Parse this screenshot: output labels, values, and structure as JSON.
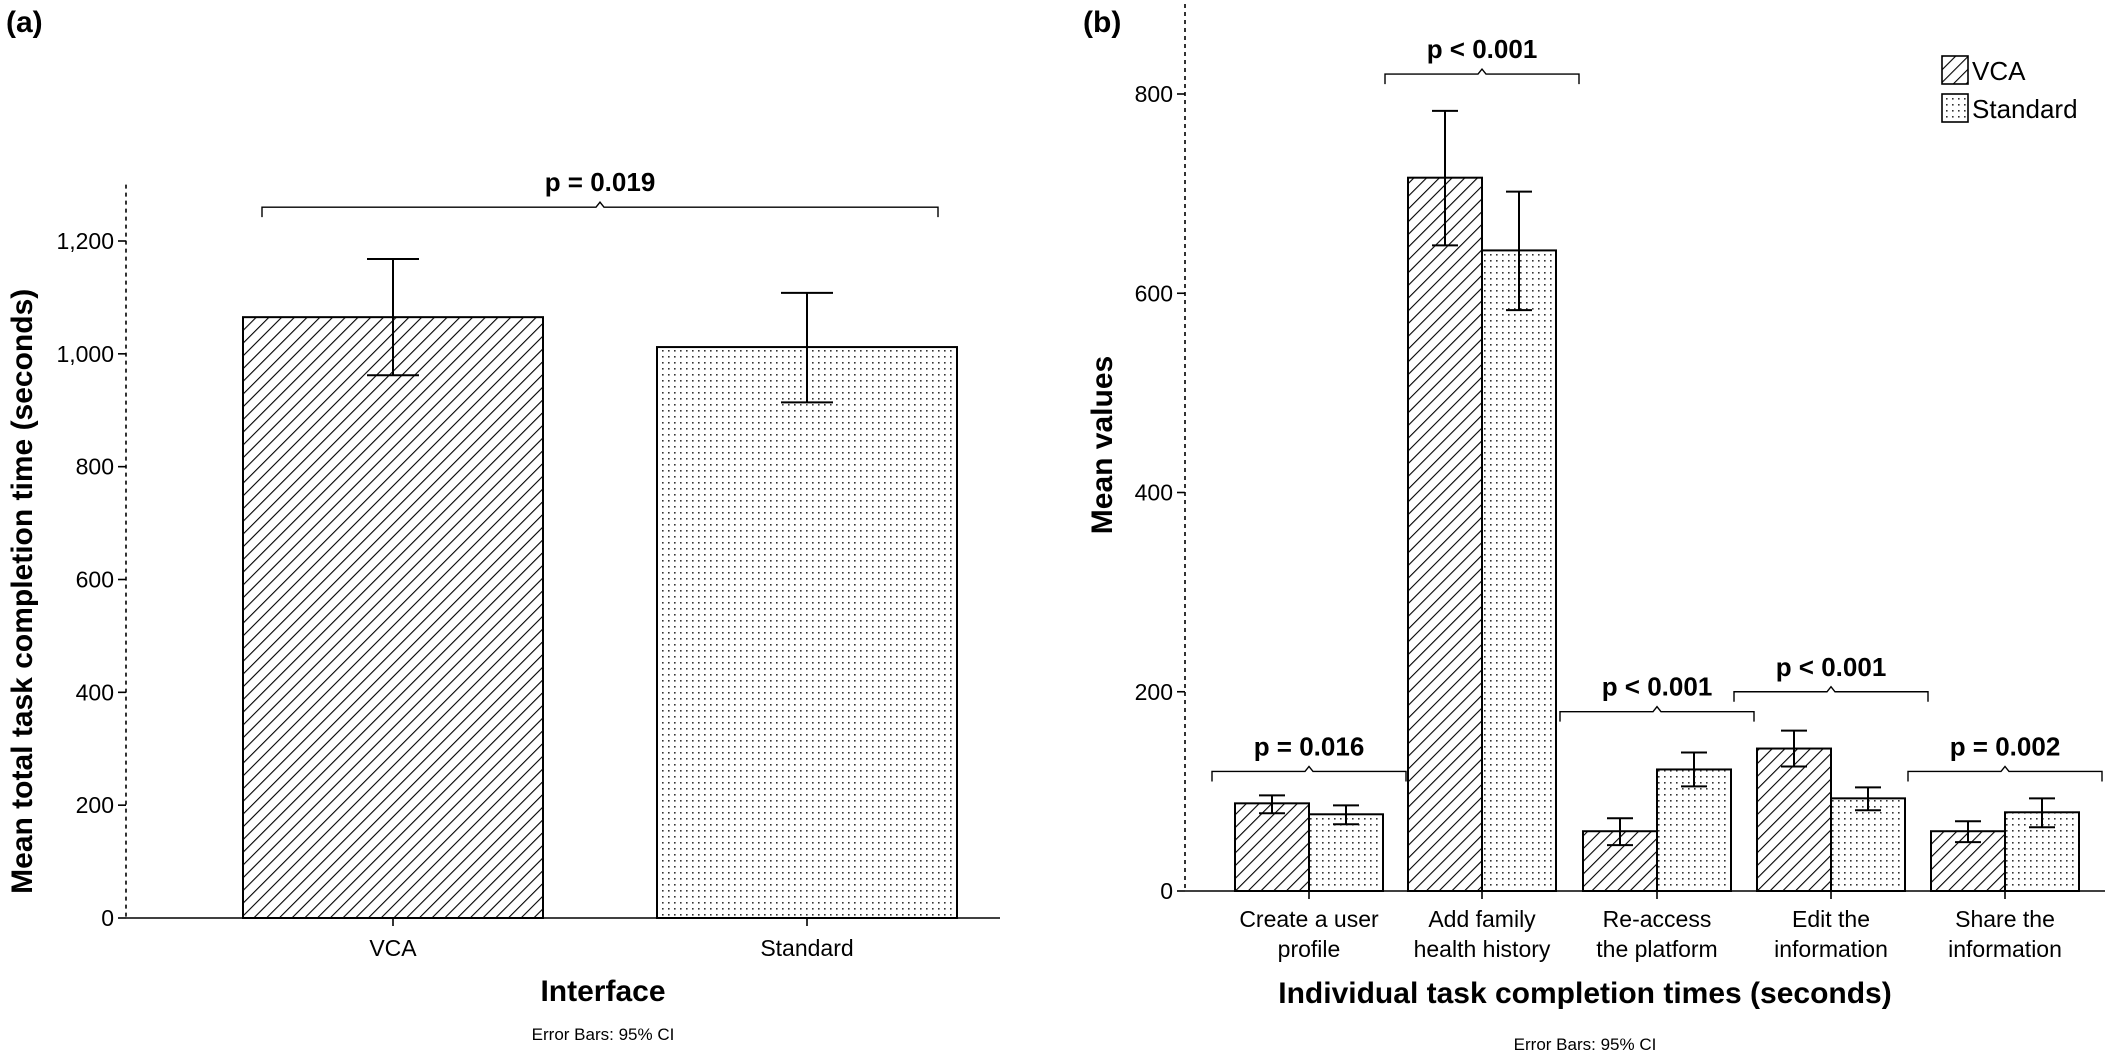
{
  "panel_a_label": "(a)",
  "panel_b_label": "(b)",
  "colors": {
    "ink": "#000000",
    "bar_fill": "#ffffff"
  },
  "chart_data": [
    {
      "type": "bar",
      "panel": "(a)",
      "title": "",
      "xlabel": "Interface",
      "ylabel": "Mean total task completion time (seconds)",
      "footnote": "Error Bars: 95% CI",
      "ylim": [
        0,
        1300
      ],
      "yticks": [
        0,
        200,
        400,
        600,
        800,
        1000,
        1200
      ],
      "ytick_labels": [
        "0",
        "200",
        "400",
        "600",
        "800",
        "1,000",
        "1,200"
      ],
      "categories": [
        "VCA",
        "Standard"
      ],
      "values": [
        1065,
        1012
      ],
      "ci_low": [
        962,
        914
      ],
      "ci_high": [
        1168,
        1108
      ],
      "patterns": [
        "hatch",
        "dots"
      ],
      "significance": [
        {
          "from": 0,
          "to": 1,
          "label": "p = 0.019",
          "y": 1260
        }
      ]
    },
    {
      "type": "bar",
      "panel": "(b)",
      "title": "",
      "xlabel": "Individual task completion times (seconds)",
      "ylabel": "Mean values",
      "footnote": "Error Bars: 95% CI",
      "ylim": [
        0,
        880
      ],
      "yticks": [
        0,
        200,
        400,
        600,
        800
      ],
      "ytick_labels": [
        "0",
        "200",
        "400",
        "600",
        "800"
      ],
      "categories": [
        [
          "Create a user",
          "profile"
        ],
        [
          "Add family",
          "health history"
        ],
        [
          "Re-access",
          "the platform"
        ],
        [
          "Edit the",
          "information"
        ],
        [
          "Share the",
          "information"
        ]
      ],
      "series": [
        {
          "name": "VCA",
          "pattern": "hatch",
          "values": [
            88,
            716,
            60,
            143,
            60
          ],
          "ci_low": [
            78,
            648,
            46,
            125,
            49
          ],
          "ci_high": [
            96,
            783,
            73,
            161,
            70
          ]
        },
        {
          "name": "Standard",
          "pattern": "dots",
          "values": [
            77,
            643,
            122,
            93,
            79
          ],
          "ci_low": [
            67,
            583,
            105,
            81,
            64
          ],
          "ci_high": [
            86,
            702,
            139,
            104,
            93
          ]
        }
      ],
      "legend": {
        "placement": "top-right",
        "entries": [
          "VCA",
          "Standard"
        ]
      },
      "significance": [
        {
          "group": 0,
          "label": "p = 0.016",
          "y": 120
        },
        {
          "group": 1,
          "label": "p < 0.001",
          "y": 820
        },
        {
          "group": 2,
          "label": "p < 0.001",
          "y": 180
        },
        {
          "group": 3,
          "label": "p < 0.001",
          "y": 200
        },
        {
          "group": 4,
          "label": "p = 0.002",
          "y": 120
        }
      ]
    }
  ]
}
